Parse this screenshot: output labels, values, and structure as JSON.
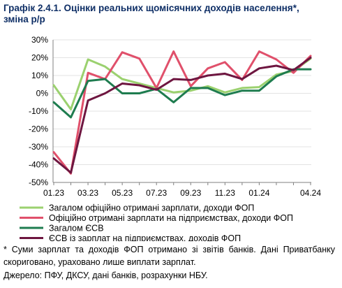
{
  "title": {
    "prefix": "Графік 2.4.1.",
    "main": "Оцінки реальних щомісячних доходів населення*,",
    "line2": "зміна р/р"
  },
  "footnote": "* Суми зарплат та доходів ФОП отримано зі звітів банків. Дані Приватбанку скориговано, ураховано лише виплати зарплат.",
  "source": "Джерело: ПФУ, ДКСУ, дані банків, розрахунки НБУ.",
  "colors": {
    "title": "#0f2f66",
    "grid": "#e3e3e3",
    "axis": "#808080"
  },
  "chart_data": {
    "type": "line",
    "x": [
      "01.23",
      "02.23",
      "03.23",
      "04.23",
      "05.23",
      "06.23",
      "07.23",
      "08.23",
      "09.23",
      "10.23",
      "11.23",
      "12.23",
      "01.24",
      "02.24",
      "03.24",
      "04.24"
    ],
    "x_tick_labels": [
      "01.23",
      "03.23",
      "05.23",
      "07.23",
      "09.23",
      "11.23",
      "01.24",
      "04.24"
    ],
    "x_tick_index": [
      0,
      2,
      4,
      6,
      8,
      10,
      12,
      15
    ],
    "y_tick_labels": [
      "30%",
      "20%",
      "10%",
      "0%",
      "-10%",
      "-20%",
      "-30%",
      "-40%",
      "-50%"
    ],
    "ylim": [
      -50,
      30
    ],
    "grid": true,
    "legend_position": "bottom",
    "series": [
      {
        "name": "Загалом офіційно отримані зарплати, доходи ФОП",
        "color": "#9bd16f",
        "values": [
          4.5,
          -9,
          19,
          15,
          8,
          5.5,
          3,
          0.5,
          1.5,
          4,
          0.5,
          3,
          3.5,
          10.5,
          12.5,
          19.5
        ]
      },
      {
        "name": "Офіційно отримані зарплати на підприємствах, доходи ФОП",
        "color": "#e0506b",
        "values": [
          -33,
          -45,
          11.5,
          8,
          23,
          19.5,
          3,
          23.5,
          4,
          14,
          17.5,
          7.5,
          23.5,
          19,
          11.5,
          21
        ]
      },
      {
        "name": "Загалом ЄСВ",
        "color": "#1e7c4f",
        "values": [
          -5,
          -13.5,
          7,
          8,
          0,
          0,
          2.5,
          -5,
          3,
          3,
          -1,
          1.5,
          1.5,
          9.5,
          13.5,
          13.5
        ]
      },
      {
        "name": "ЄСВ із зарплат на підприємствах, доходів ФОП",
        "color": "#6e1640",
        "values": [
          -36.5,
          -44.5,
          -4,
          0,
          5.5,
          4.5,
          2,
          8,
          7.5,
          10,
          11,
          8,
          14,
          15.5,
          13,
          20
        ]
      }
    ]
  }
}
